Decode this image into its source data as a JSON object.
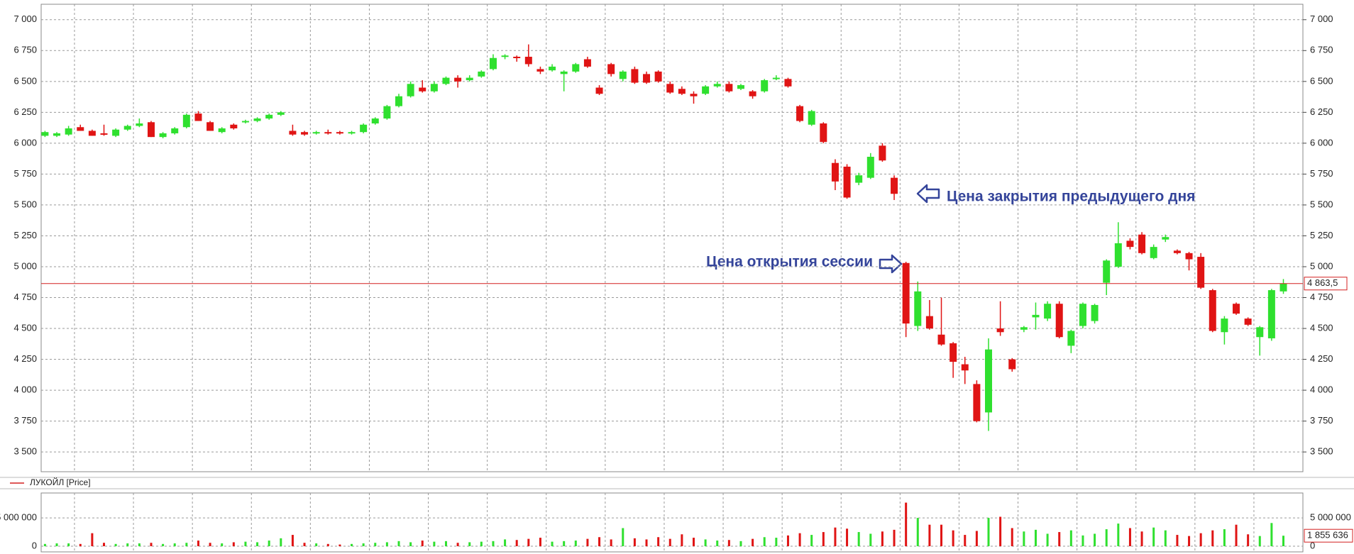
{
  "chart_data": [
    {
      "type": "candlestick",
      "legend": "ЛУКОЙЛ [Price]",
      "grid": true,
      "up_color": "#2fe02f",
      "down_color": "#e01414",
      "line_color": "#d42020",
      "annotations": [
        "Цена закрытия предыдущего дня",
        "Цена открытия сессии"
      ],
      "ylim": [
        3340,
        7125
      ],
      "yticks": [
        {
          "value": 3500,
          "label": "3 500"
        },
        {
          "value": 3750,
          "label": "3 750"
        },
        {
          "value": 4000,
          "label": "4 000"
        },
        {
          "value": 4250,
          "label": "4 250"
        },
        {
          "value": 4500,
          "label": "4 500"
        },
        {
          "value": 4750,
          "label": "4 750"
        },
        {
          "value": 5000,
          "label": "5 000"
        },
        {
          "value": 5250,
          "label": "5 250"
        },
        {
          "value": 5500,
          "label": "5 500"
        },
        {
          "value": 5750,
          "label": "5 750"
        },
        {
          "value": 6000,
          "label": "6 000"
        },
        {
          "value": 6250,
          "label": "6 250"
        },
        {
          "value": 6500,
          "label": "6 500"
        },
        {
          "value": 6750,
          "label": "6 750"
        },
        {
          "value": 7000,
          "label": "7 000"
        }
      ],
      "open": [
        6060,
        6060,
        6070,
        6130,
        6100,
        6080,
        6060,
        6110,
        6140,
        6170,
        6050,
        6080,
        6130,
        6240,
        6170,
        6090,
        6150,
        6170,
        6180,
        6200,
        6230,
        6100,
        6090,
        6080,
        6090,
        6090,
        6080,
        6090,
        6160,
        6200,
        6300,
        6380,
        6450,
        6420,
        6480,
        6530,
        6510,
        6540,
        6600,
        6700,
        6700,
        6700,
        6600,
        6590,
        6560,
        6580,
        6680,
        6450,
        6640,
        6520,
        6600,
        6560,
        6580,
        6480,
        6440,
        6400,
        6400,
        6460,
        6480,
        6440,
        6420,
        6420,
        6520,
        6520,
        6300,
        6150,
        6160,
        5840,
        5810,
        5680,
        5720,
        5980,
        5720,
        5030,
        4520,
        4600,
        4450,
        4380,
        4210,
        4050,
        3820,
        4500,
        4250,
        4490,
        4590,
        4580,
        4700,
        4360,
        4520,
        4560,
        4870,
        5000,
        5210,
        5260,
        5070,
        5220,
        5130,
        5110,
        5080,
        4810,
        4470,
        4700,
        4580,
        4430,
        4420,
        4800
      ],
      "high": [
        6100,
        6090,
        6140,
        6150,
        6110,
        6150,
        6120,
        6150,
        6200,
        6180,
        6090,
        6130,
        6240,
        6260,
        6180,
        6130,
        6160,
        6190,
        6210,
        6240,
        6260,
        6150,
        6100,
        6100,
        6110,
        6100,
        6100,
        6160,
        6210,
        6310,
        6400,
        6500,
        6510,
        6500,
        6540,
        6550,
        6550,
        6590,
        6720,
        6720,
        6710,
        6800,
        6620,
        6640,
        6590,
        6650,
        6700,
        6470,
        6650,
        6590,
        6620,
        6580,
        6590,
        6500,
        6460,
        6420,
        6470,
        6500,
        6500,
        6480,
        6430,
        6520,
        6550,
        6530,
        6310,
        6270,
        6170,
        5870,
        5830,
        5760,
        5920,
        6000,
        5740,
        5040,
        4880,
        4730,
        4750,
        4390,
        4270,
        4080,
        4420,
        4720,
        4260,
        4520,
        4710,
        4720,
        4720,
        4490,
        4710,
        4700,
        5060,
        5360,
        5230,
        5280,
        5180,
        5260,
        5140,
        5120,
        5110,
        4820,
        4600,
        4710,
        4590,
        4520,
        4820,
        4900
      ],
      "low": [
        6050,
        6050,
        6060,
        6100,
        6060,
        6060,
        6050,
        6100,
        6130,
        6050,
        6040,
        6070,
        6120,
        6180,
        6100,
        6080,
        6110,
        6160,
        6170,
        6190,
        6220,
        6060,
        6060,
        6070,
        6070,
        6070,
        6070,
        6080,
        6150,
        6190,
        6290,
        6370,
        6410,
        6410,
        6470,
        6450,
        6500,
        6530,
        6590,
        6680,
        6660,
        6620,
        6560,
        6580,
        6420,
        6570,
        6610,
        6390,
        6540,
        6500,
        6480,
        6480,
        6490,
        6400,
        6390,
        6320,
        6390,
        6450,
        6410,
        6430,
        6360,
        6410,
        6510,
        6450,
        6170,
        6140,
        6000,
        5620,
        5550,
        5660,
        5710,
        5850,
        5540,
        4430,
        4480,
        4490,
        4360,
        4100,
        4050,
        3740,
        3670,
        4440,
        4150,
        4470,
        4490,
        4560,
        4420,
        4300,
        4500,
        4540,
        4770,
        4990,
        5140,
        5100,
        5060,
        5200,
        5100,
        4970,
        4820,
        4470,
        4370,
        4610,
        4520,
        4280,
        4400,
        4780
      ],
      "close": [
        6090,
        6080,
        6120,
        6100,
        6060,
        6070,
        6110,
        6140,
        6160,
        6050,
        6080,
        6120,
        6230,
        6180,
        6100,
        6120,
        6120,
        6180,
        6200,
        6230,
        6250,
        6070,
        6070,
        6090,
        6080,
        6080,
        6090,
        6150,
        6200,
        6300,
        6380,
        6480,
        6420,
        6480,
        6530,
        6500,
        6530,
        6580,
        6690,
        6710,
        6690,
        6640,
        6580,
        6620,
        6580,
        6640,
        6620,
        6400,
        6560,
        6580,
        6490,
        6490,
        6500,
        6410,
        6400,
        6380,
        6460,
        6480,
        6420,
        6470,
        6380,
        6510,
        6530,
        6460,
        6180,
        6260,
        6010,
        5690,
        5560,
        5740,
        5890,
        5860,
        5590,
        4540,
        4800,
        4500,
        4370,
        4230,
        4160,
        3750,
        4330,
        4470,
        4170,
        4510,
        4610,
        4700,
        4430,
        4480,
        4700,
        4690,
        5050,
        5190,
        5160,
        5110,
        5160,
        5240,
        5110,
        5060,
        4830,
        4480,
        4580,
        4620,
        4530,
        4510,
        4810,
        4863.5
      ],
      "last_price_label": "4 863,5"
    },
    {
      "type": "bar",
      "ylim": [
        -1000000,
        9400000
      ],
      "yticks": [
        0,
        {
          "value": 5000000,
          "label": "5 000 000"
        }
      ],
      "values": [
        400000,
        500000,
        500000,
        400000,
        2300000,
        600000,
        400000,
        500000,
        500000,
        600000,
        400000,
        500000,
        600000,
        1000000,
        600000,
        500000,
        700000,
        800000,
        700000,
        1000000,
        1400000,
        2000000,
        600000,
        500000,
        400000,
        300000,
        400000,
        500000,
        600000,
        700000,
        900000,
        700000,
        1000000,
        800000,
        900000,
        600000,
        700000,
        800000,
        900000,
        1200000,
        1100000,
        1300000,
        1500000,
        800000,
        900000,
        1000000,
        1300000,
        1600000,
        1200000,
        3200000,
        1400000,
        1200000,
        1600000,
        1300000,
        2100000,
        1500000,
        1200000,
        1000000,
        1100000,
        900000,
        1300000,
        1600000,
        1500000,
        1900000,
        2300000,
        2000000,
        2500000,
        3300000,
        3100000,
        2500000,
        2200000,
        2600000,
        2900000,
        7700000,
        5000000,
        3800000,
        3800000,
        2800000,
        2000000,
        2700000,
        5000000,
        5200000,
        3200000,
        2600000,
        2900000,
        2200000,
        2500000,
        2800000,
        1900000,
        2200000,
        3000000,
        4000000,
        3200000,
        2600000,
        3300000,
        2800000,
        2000000,
        1800000,
        2300000,
        2800000,
        3000000,
        3800000,
        2100000,
        1800000,
        4100000,
        1855636
      ],
      "last_value_label": "1 855 636"
    }
  ]
}
